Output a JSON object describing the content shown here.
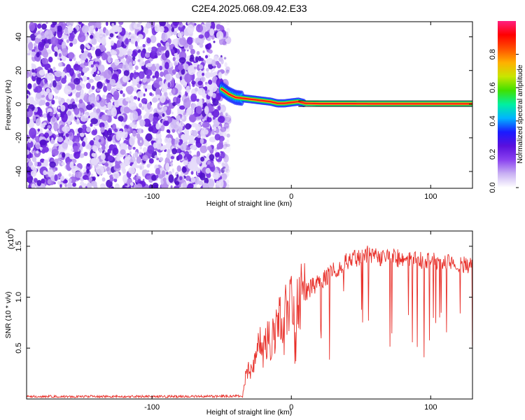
{
  "title": "C2E4.2025.068.09.42.E33",
  "chart_data": [
    {
      "type": "heatmap",
      "xlabel": "Height of straight line (km)",
      "ylabel": "Frequency (Hz)",
      "xlim": [
        -190,
        130
      ],
      "ylim": [
        -50,
        49
      ],
      "xticks": [
        -100,
        0,
        100
      ],
      "yticks": [
        -40,
        -20,
        0,
        20,
        40
      ],
      "noise_region_x": [
        -190,
        -45
      ],
      "noise_region_y": [
        -50,
        49
      ],
      "signal_track": {
        "x": [
          -50,
          -45,
          -40,
          -35,
          -30,
          -25,
          -20,
          -15,
          -10,
          -5,
          0,
          5,
          10,
          20,
          40,
          60,
          80,
          100,
          130
        ],
        "y": [
          9,
          6,
          4,
          3.5,
          3,
          2.5,
          2,
          1.5,
          0.5,
          0.5,
          1,
          1.5,
          0.5,
          0.3,
          0.3,
          0.2,
          0.2,
          0.2,
          0.2
        ]
      },
      "colorbar": {
        "label": "Normalized spectral amplitude",
        "range": [
          0,
          1
        ],
        "ticks": [
          0.0,
          0.2,
          0.4,
          0.6,
          0.8
        ],
        "colormap": [
          "#ffffff",
          "#c9b1f3",
          "#8a42f0",
          "#5a10dd",
          "#1a1aff",
          "#00b4ff",
          "#00f0a0",
          "#40e000",
          "#c8e600",
          "#ffb000",
          "#ff5000",
          "#ff0000",
          "#ff2080"
        ]
      }
    },
    {
      "type": "line",
      "xlabel": "Height of straight line (km)",
      "ylabel": "SNR (10 * v/v)",
      "y_multiplier": "(x10",
      "y_multiplier_exp": "4",
      "y_multiplier_close": ")",
      "xlim": [
        -190,
        130
      ],
      "ylim": [
        0,
        16500
      ],
      "xticks": [
        -100,
        0,
        100
      ],
      "yticks": [
        5000,
        10000,
        15000
      ],
      "ytick_labels": [
        "0.5",
        "1.0",
        "1.5"
      ],
      "series": [
        {
          "color": "#e8302a",
          "x": [
            -190,
            -150,
            -100,
            -60,
            -35,
            -33,
            -30,
            -28,
            -25,
            -22,
            -20,
            -18,
            -15,
            -13,
            -10,
            -8,
            -5,
            0,
            5,
            10,
            15,
            20,
            25,
            30,
            35,
            40,
            45,
            50,
            55,
            60,
            70,
            80,
            90,
            100,
            110,
            120,
            130
          ],
          "y": [
            250,
            250,
            250,
            250,
            300,
            2000,
            3000,
            2500,
            4500,
            5500,
            4500,
            6000,
            5500,
            7000,
            6500,
            8000,
            8500,
            9000,
            9800,
            10500,
            11000,
            11500,
            12000,
            12700,
            13000,
            13500,
            13800,
            14000,
            14200,
            14000,
            13900,
            13800,
            13600,
            13500,
            13400,
            13300,
            13200
          ]
        }
      ]
    }
  ]
}
